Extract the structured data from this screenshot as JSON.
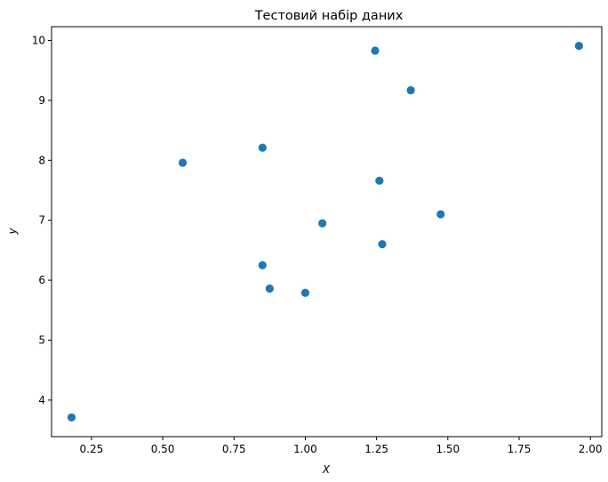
{
  "chart_data": {
    "type": "scatter",
    "title": "Тестовий набір даних",
    "xlabel": "X",
    "ylabel": "y",
    "xlim": [
      0.11,
      2.04
    ],
    "ylim": [
      3.39,
      10.23
    ],
    "grid": false,
    "legend": "none",
    "x_ticks": [
      0.25,
      0.5,
      0.75,
      1.0,
      1.25,
      1.5,
      1.75,
      2.0
    ],
    "x_tick_labels": [
      "0.25",
      "0.50",
      "0.75",
      "1.00",
      "1.25",
      "1.50",
      "1.75",
      "2.00"
    ],
    "y_ticks": [
      4,
      5,
      6,
      7,
      8,
      9,
      10
    ],
    "y_tick_labels": [
      "4",
      "5",
      "6",
      "7",
      "8",
      "9",
      "10"
    ],
    "marker_color": "#1f77b4",
    "points": [
      {
        "x": 0.18,
        "y": 3.71
      },
      {
        "x": 0.57,
        "y": 7.96
      },
      {
        "x": 0.85,
        "y": 8.21
      },
      {
        "x": 0.85,
        "y": 6.25
      },
      {
        "x": 0.875,
        "y": 5.86
      },
      {
        "x": 1.0,
        "y": 5.79
      },
      {
        "x": 1.06,
        "y": 6.95
      },
      {
        "x": 1.245,
        "y": 9.83
      },
      {
        "x": 1.26,
        "y": 7.66
      },
      {
        "x": 1.27,
        "y": 6.6
      },
      {
        "x": 1.37,
        "y": 9.17
      },
      {
        "x": 1.475,
        "y": 7.1
      },
      {
        "x": 1.96,
        "y": 9.91
      }
    ]
  }
}
